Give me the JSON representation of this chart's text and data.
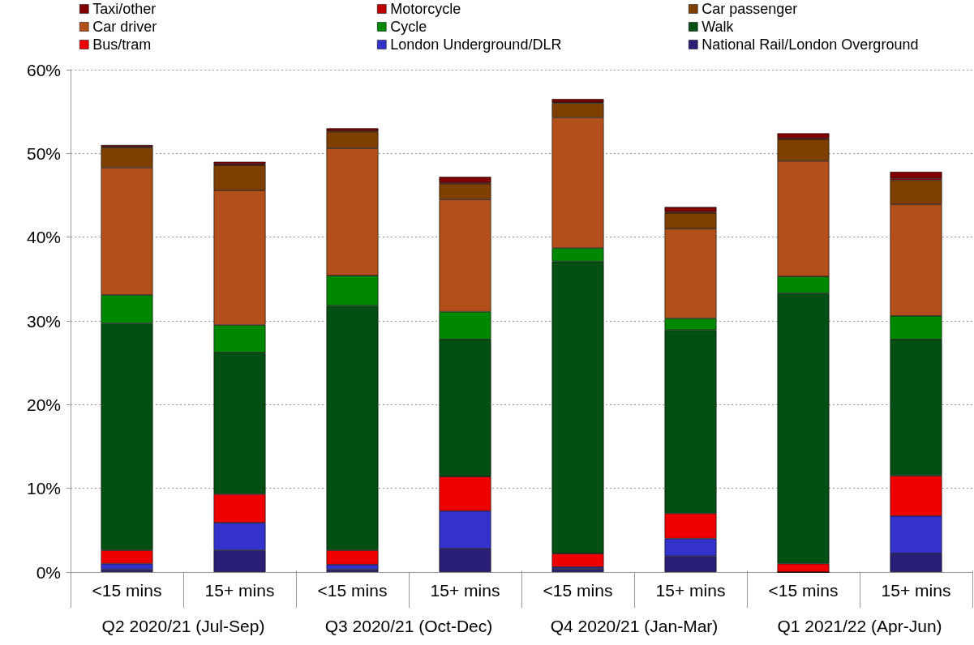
{
  "chart_data": {
    "type": "bar",
    "stacked": true,
    "categories": [
      "<15 mins",
      "15+ mins",
      "<15 mins",
      "15+ mins",
      "<15 mins",
      "15+ mins",
      "<15 mins",
      "15+ mins"
    ],
    "annotations": [
      "Q2 2020/21 (Jul-Sep)",
      "Q3 2020/21 (Oct-Dec)",
      "Q4 2020/21 (Jan-Mar)",
      "Q1 2021/22 (Apr-Jun)"
    ],
    "series": [
      {
        "name": "National Rail/London Overground",
        "color": "#2a1f77",
        "values": [
          0.3,
          2.6,
          0.3,
          2.8,
          0.4,
          1.9,
          0,
          2.2
        ]
      },
      {
        "name": "London Underground/DLR",
        "color": "#3333cc",
        "values": [
          0.7,
          3.3,
          0.6,
          4.5,
          0.2,
          2.1,
          0,
          4.5
        ]
      },
      {
        "name": "Bus/tram",
        "color": "#ee0000",
        "values": [
          1.6,
          3.4,
          1.7,
          4.1,
          1.6,
          3.0,
          1.0,
          4.8
        ]
      },
      {
        "name": "Walk",
        "color": "#034f14",
        "values": [
          27.1,
          16.9,
          29.2,
          16.4,
          34.9,
          21.9,
          32.3,
          16.3
        ]
      },
      {
        "name": "Cycle",
        "color": "#008800",
        "values": [
          3.4,
          3.3,
          3.6,
          3.3,
          1.6,
          1.4,
          2.0,
          2.8
        ]
      },
      {
        "name": "Car driver",
        "color": "#b24f1a",
        "values": [
          15.2,
          16.1,
          15.2,
          13.4,
          15.6,
          10.7,
          13.8,
          13.3
        ]
      },
      {
        "name": "Car passenger",
        "color": "#7f3f00",
        "values": [
          2.4,
          3.0,
          2.0,
          1.9,
          1.7,
          1.9,
          2.6,
          2.9
        ]
      },
      {
        "name": "Motorcycle",
        "color": "#c00000",
        "values": [
          0.1,
          0.1,
          0.1,
          0.1,
          0.1,
          0.1,
          0.1,
          0.2
        ]
      },
      {
        "name": "Taxi/other",
        "color": "#7f0000",
        "values": [
          0.2,
          0.3,
          0.3,
          0.7,
          0.4,
          0.6,
          0.6,
          0.8
        ]
      }
    ],
    "ylim": [
      0,
      60
    ],
    "yticks": [
      {
        "value": 0,
        "label": "0%"
      },
      {
        "value": 10,
        "label": "10%"
      },
      {
        "value": 20,
        "label": "20%"
      },
      {
        "value": 30,
        "label": "30%"
      },
      {
        "value": 40,
        "label": "40%"
      },
      {
        "value": 50,
        "label": "50%"
      },
      {
        "value": 60,
        "label": "60%"
      }
    ],
    "grid": "y",
    "legend": "top"
  }
}
